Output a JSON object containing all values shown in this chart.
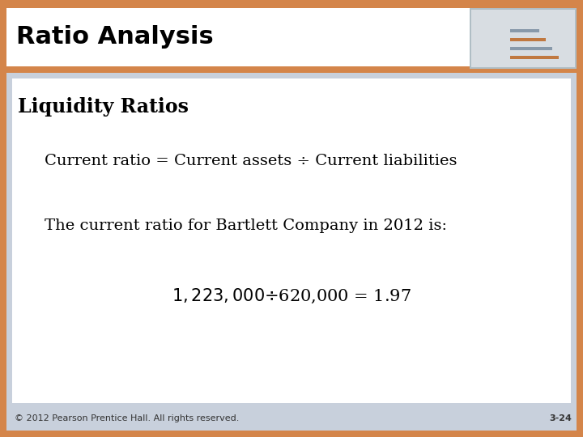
{
  "title": "Ratio Analysis",
  "subtitle": "Liquidity Ratios",
  "line1": "Current ratio = Current assets ÷ Current liabilities",
  "line2": "The current ratio for Bartlett Company in 2012 is:",
  "line3": "$1,223,000 ÷ $620,000 = 1.97",
  "footer_left": "© 2012 Pearson Prentice Hall. All rights reserved.",
  "footer_right": "3-24",
  "orange_color": "#D4854A",
  "header_white_bg": "#FFFFFF",
  "body_outer_bg": "#C8D0DC",
  "body_inner_bg": "#FFFFFF",
  "title_color": "#000000",
  "text_color": "#000000",
  "footer_text_color": "#333333",
  "title_fontsize": 22,
  "subtitle_fontsize": 17,
  "body_fontsize": 14,
  "line3_fontsize": 15,
  "footer_fontsize": 8
}
